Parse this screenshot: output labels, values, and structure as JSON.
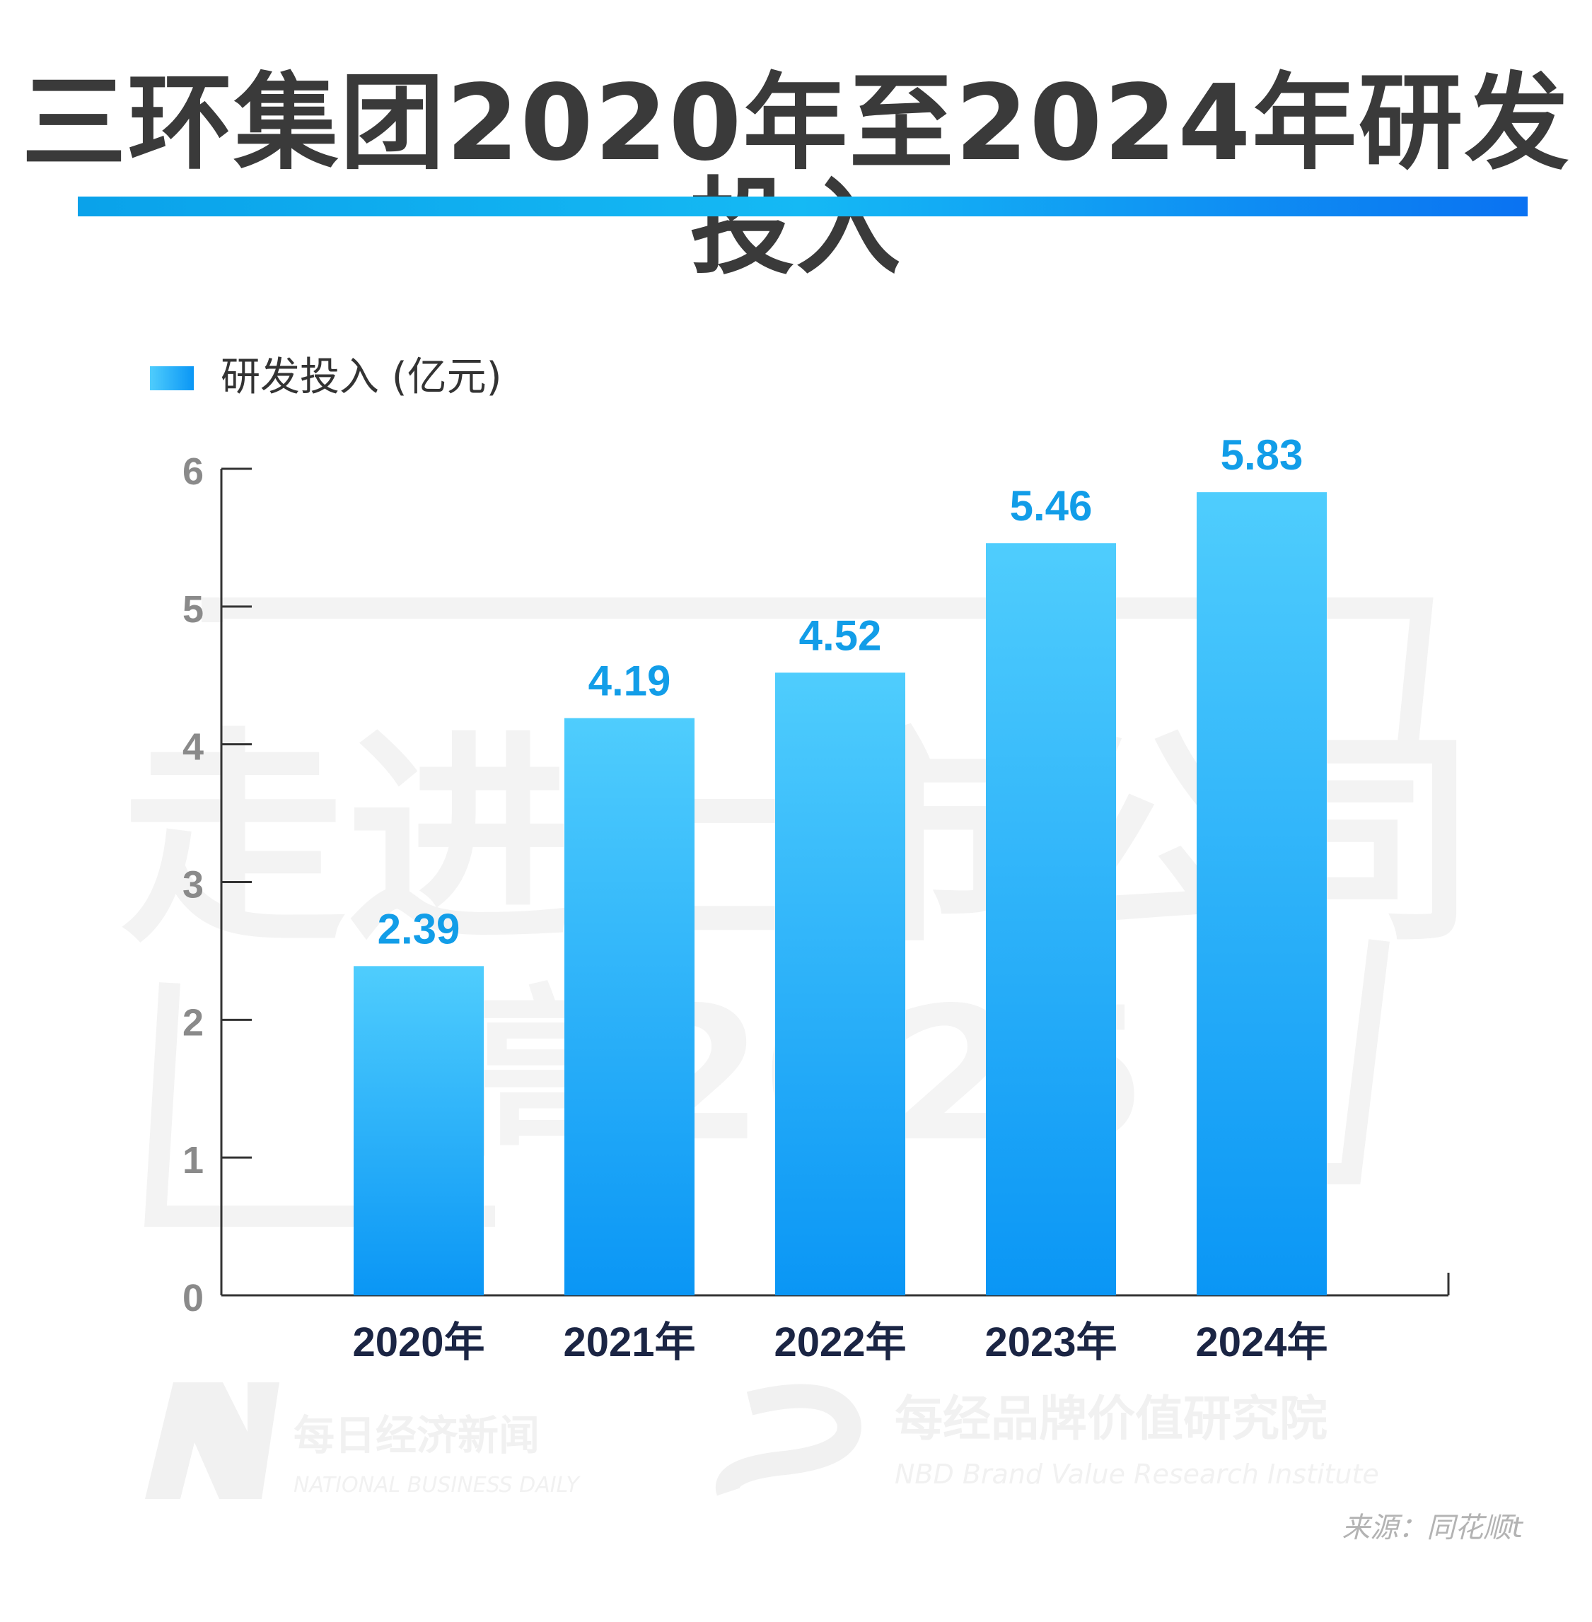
{
  "page": {
    "title": "三环集团2020年至2024年研发投入",
    "source": "来源：同花顺t"
  },
  "watermark": {
    "headline": "走进上市公司",
    "subline": "高2025",
    "brand_left_cn": "每日经济新闻",
    "brand_left_en": "NATIONAL BUSINESS DAILY",
    "brand_right_cn": "每经品牌价值研究院",
    "brand_right_en": "NBD Brand Value Research Institute"
  },
  "colors": {
    "title": "#3a3a3a",
    "bar_top": "#4fcdfd",
    "bar_bottom": "#0a96f5",
    "value_label": "#129de8",
    "x_tick_label": "#1b2544",
    "y_tick_label": "#8a8a8a",
    "axis": "#333333",
    "watermark": "#f2f2f2"
  },
  "chart_data": {
    "type": "bar",
    "categories": [
      "2020年",
      "2021年",
      "2022年",
      "2023年",
      "2024年"
    ],
    "series": [
      {
        "name": "研发投入 (亿元)",
        "values": [
          2.39,
          4.19,
          4.52,
          5.46,
          5.83
        ]
      }
    ],
    "value_labels": [
      "2.39",
      "4.19",
      "4.52",
      "5.46",
      "5.83"
    ],
    "y_ticks": [
      "0",
      "1",
      "2",
      "3",
      "4",
      "5",
      "6"
    ],
    "ylim": [
      0,
      6
    ],
    "grid": false,
    "legend_position": "top-left"
  }
}
